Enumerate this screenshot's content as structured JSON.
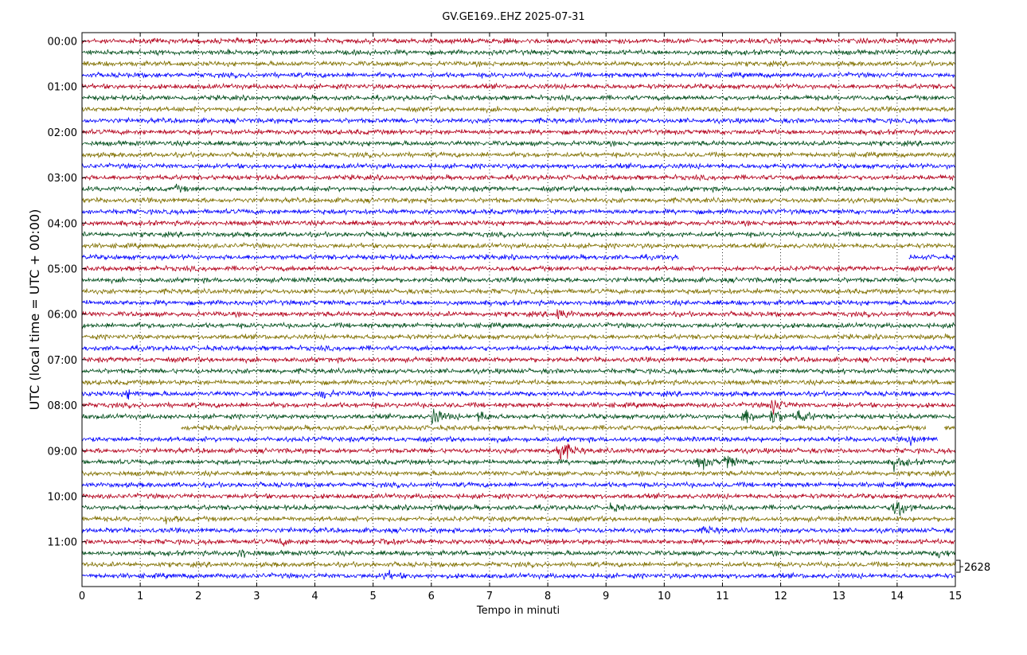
{
  "chart_data": {
    "type": "line",
    "title": "GV.GE169..EHZ 2025-07-31",
    "xlabel": "Tempo in minuti",
    "ylabel": "UTC (local time = UTC + 00:00)",
    "xlim": [
      0,
      15
    ],
    "x_ticks": [
      "0",
      "1",
      "2",
      "3",
      "4",
      "5",
      "6",
      "7",
      "8",
      "9",
      "10",
      "11",
      "12",
      "13",
      "14",
      "15"
    ],
    "y_tick_labels": [
      "00:00",
      "01:00",
      "02:00",
      "03:00",
      "04:00",
      "05:00",
      "06:00",
      "07:00",
      "08:00",
      "09:00",
      "10:00",
      "11:00"
    ],
    "trace_interval_minutes": 15,
    "trace_count": 48,
    "series_colors": [
      "#b3001b",
      "#004d1a",
      "#807000",
      "#0000ff"
    ],
    "vertical_grid": "dotted",
    "scale_label": "2628",
    "gaps": [
      {
        "trace": 19,
        "from_min": 10.25,
        "to_min": 14.2
      },
      {
        "trace": 34,
        "from_min": 0,
        "to_min": 1.7
      },
      {
        "trace": 34,
        "from_min": 14.5,
        "to_min": 14.8
      },
      {
        "trace": 35,
        "from_min": 14.7,
        "to_min": 15
      }
    ],
    "events": [
      {
        "trace": 13,
        "at_min": 1.6,
        "amp": 2.5
      },
      {
        "trace": 24,
        "at_min": 8.15,
        "amp": 6
      },
      {
        "trace": 31,
        "at_min": 0.75,
        "amp": 4
      },
      {
        "trace": 31,
        "at_min": 4.1,
        "amp": 4
      },
      {
        "trace": 32,
        "at_min": 11.85,
        "amp": 8
      },
      {
        "trace": 33,
        "at_min": 6.0,
        "amp": 10
      },
      {
        "trace": 33,
        "at_min": 6.8,
        "amp": 5
      },
      {
        "trace": 33,
        "at_min": 11.35,
        "amp": 9
      },
      {
        "trace": 33,
        "at_min": 11.85,
        "amp": 7
      },
      {
        "trace": 33,
        "at_min": 12.3,
        "amp": 7
      },
      {
        "trace": 35,
        "at_min": 14.2,
        "amp": 4
      },
      {
        "trace": 35,
        "at_min": 14.75,
        "amp": 5
      },
      {
        "trace": 36,
        "at_min": 8.15,
        "amp": 16
      },
      {
        "trace": 37,
        "at_min": 10.6,
        "amp": 7
      },
      {
        "trace": 37,
        "at_min": 11.05,
        "amp": 8
      },
      {
        "trace": 37,
        "at_min": 13.95,
        "amp": 6
      },
      {
        "trace": 41,
        "at_min": 6.05,
        "amp": 3
      },
      {
        "trace": 41,
        "at_min": 9.1,
        "amp": 3
      },
      {
        "trace": 41,
        "at_min": 13.95,
        "amp": 14
      },
      {
        "trace": 42,
        "at_min": 1.45,
        "amp": 3
      },
      {
        "trace": 43,
        "at_min": 10.7,
        "amp": 3
      },
      {
        "trace": 44,
        "at_min": 3.4,
        "amp": 3
      },
      {
        "trace": 44,
        "at_min": 5.15,
        "amp": 3
      },
      {
        "trace": 45,
        "at_min": 2.7,
        "amp": 5
      },
      {
        "trace": 45,
        "at_min": 14.7,
        "amp": 4
      },
      {
        "trace": 47,
        "at_min": 5.2,
        "amp": 4
      }
    ]
  }
}
